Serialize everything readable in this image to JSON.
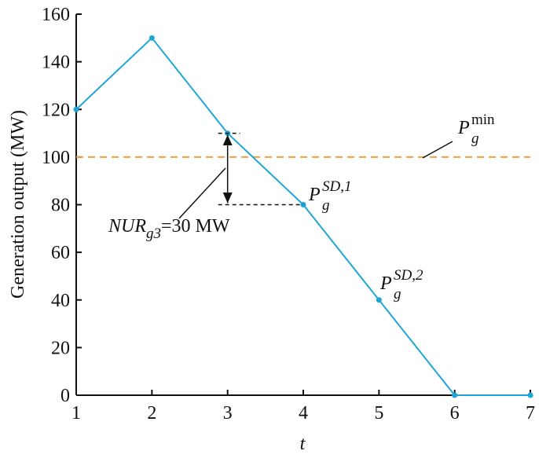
{
  "chart_data": {
    "type": "line",
    "xlabel": "t",
    "ylabel": "Generation output (MW)",
    "x": [
      1,
      2,
      3,
      4,
      5,
      6,
      7
    ],
    "series": [
      {
        "color": "#1ea5d8",
        "values": [
          120,
          150,
          110,
          80,
          40,
          0,
          0
        ]
      }
    ],
    "xlim": [
      1,
      7
    ],
    "xticks": [
      1,
      2,
      3,
      4,
      5,
      6,
      7
    ],
    "ylim": [
      0,
      160
    ],
    "yticks": [
      0,
      20,
      40,
      60,
      80,
      100,
      120,
      140,
      160
    ],
    "hlines": [
      {
        "value": 100,
        "color": "#f0a040"
      }
    ],
    "annotations": [
      {
        "main": "P",
        "sub": "g",
        "sup": "min"
      },
      {
        "main": "P",
        "sub": "g",
        "sup": "SD,1"
      },
      {
        "main": "P",
        "sub": "g",
        "sup": "SD,2"
      },
      {
        "main": "NUR",
        "sub": "g3",
        "rest": "=30 MW"
      }
    ]
  }
}
